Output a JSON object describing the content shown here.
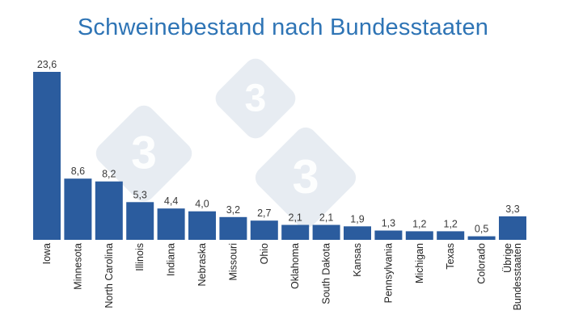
{
  "colors": {
    "bar": "#2b5c9e",
    "title": "#2e74b5",
    "watermark": "#dfe6ee"
  },
  "watermark_glyph": "3",
  "chart_data": {
    "type": "bar",
    "title": "Schweinebestand nach Bundesstaaten",
    "xlabel": "",
    "ylabel": "",
    "ylim": [
      0,
      23.6
    ],
    "grid": false,
    "legend": "none",
    "categories": [
      "Iowa",
      "Minnesota",
      "North Carolina",
      "Illinois",
      "Indiana",
      "Nebraska",
      "Missouri",
      "Ohio",
      "Oklahoma",
      "South Dakota",
      "Kansas",
      "Pennsylvania",
      "Michigan",
      "Texas",
      "Colorado",
      [
        "Übrige",
        "Bundesstaaten"
      ]
    ],
    "values": [
      23.6,
      8.6,
      8.2,
      5.3,
      4.4,
      4.0,
      3.2,
      2.7,
      2.1,
      2.1,
      1.9,
      1.3,
      1.2,
      1.2,
      0.5,
      3.3
    ],
    "value_labels": [
      "23,6",
      "8,6",
      "8,2",
      "5,3",
      "4,4",
      "4,0",
      "3,2",
      "2,7",
      "2,1",
      "2,1",
      "1,9",
      "1,3",
      "1,2",
      "1,2",
      "0,5",
      "3,3"
    ]
  }
}
